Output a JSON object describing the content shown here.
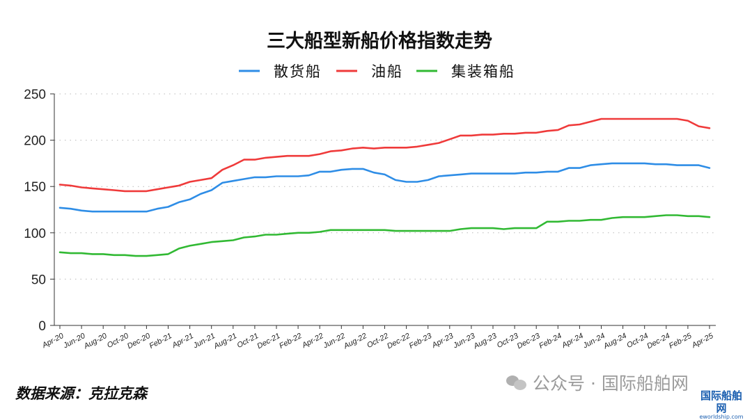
{
  "chart_data": {
    "type": "line",
    "title": "三大船型新船价格指数走势",
    "xlabel": "",
    "ylabel": "",
    "ylim": [
      0,
      250
    ],
    "yticks": [
      0,
      50,
      100,
      150,
      200,
      250
    ],
    "grid": "horizontal dotted",
    "legend_position": "top-center",
    "x": [
      "Apr-20",
      "May-20",
      "Jun-20",
      "Jul-20",
      "Aug-20",
      "Sep-20",
      "Oct-20",
      "Nov-20",
      "Dec-20",
      "Jan-21",
      "Feb-21",
      "Mar-21",
      "Apr-21",
      "May-21",
      "Jun-21",
      "Jul-21",
      "Aug-21",
      "Sep-21",
      "Oct-21",
      "Nov-21",
      "Dec-21",
      "Jan-22",
      "Feb-22",
      "Mar-22",
      "Apr-22",
      "May-22",
      "Jun-22",
      "Jul-22",
      "Aug-22",
      "Sep-22",
      "Oct-22",
      "Nov-22",
      "Dec-22",
      "Jan-23",
      "Feb-23",
      "Mar-23",
      "Apr-23",
      "May-23",
      "Jun-23",
      "Jul-23",
      "Aug-23",
      "Sep-23",
      "Oct-23",
      "Nov-23",
      "Dec-23",
      "Jan-24",
      "Feb-24",
      "Mar-24",
      "Apr-24",
      "May-24",
      "Jun-24",
      "Jul-24",
      "Aug-24",
      "Sep-24",
      "Oct-24",
      "Nov-24",
      "Dec-24",
      "Jan-25",
      "Feb-25",
      "Mar-25",
      "Apr-25"
    ],
    "x_tick_labels": [
      "Apr-20",
      "Jun-20",
      "Aug-20",
      "Oct-20",
      "Dec-20",
      "Feb-21",
      "Apr-21",
      "Jun-21",
      "Aug-21",
      "Oct-21",
      "Dec-21",
      "Feb-22",
      "Apr-22",
      "Jun-22",
      "Aug-22",
      "Oct-22",
      "Dec-22",
      "Feb-23",
      "Apr-23",
      "Jun-23",
      "Aug-23",
      "Oct-23",
      "Dec-23",
      "Feb-24",
      "Apr-24",
      "Jun-24",
      "Aug-24",
      "Oct-24",
      "Dec-24",
      "Feb-25",
      "Apr-25"
    ],
    "series": [
      {
        "name": "散货船",
        "color": "#2e8de6",
        "values": [
          127,
          126,
          124,
          123,
          123,
          123,
          123,
          123,
          123,
          126,
          128,
          133,
          136,
          142,
          146,
          154,
          156,
          158,
          160,
          160,
          161,
          161,
          161,
          162,
          166,
          166,
          168,
          169,
          169,
          165,
          163,
          157,
          155,
          155,
          157,
          161,
          162,
          163,
          164,
          164,
          164,
          164,
          164,
          165,
          165,
          166,
          166,
          170,
          170,
          173,
          174,
          175,
          175,
          175,
          175,
          174,
          174,
          173,
          173,
          173,
          170
        ]
      },
      {
        "name": "油船",
        "color": "#ef3a3a",
        "values": [
          152,
          151,
          149,
          148,
          147,
          146,
          145,
          145,
          145,
          147,
          149,
          151,
          155,
          157,
          159,
          168,
          173,
          179,
          179,
          181,
          182,
          183,
          183,
          183,
          185,
          188,
          189,
          191,
          192,
          191,
          192,
          192,
          192,
          193,
          195,
          197,
          201,
          205,
          205,
          206,
          206,
          207,
          207,
          208,
          208,
          210,
          211,
          216,
          217,
          220,
          223,
          223,
          223,
          223,
          223,
          223,
          223,
          223,
          221,
          215,
          213
        ]
      },
      {
        "name": "集装箱船",
        "color": "#31b933",
        "values": [
          79,
          78,
          78,
          77,
          77,
          76,
          76,
          75,
          75,
          76,
          77,
          83,
          86,
          88,
          90,
          91,
          92,
          95,
          96,
          98,
          98,
          99,
          100,
          100,
          101,
          103,
          103,
          103,
          103,
          103,
          103,
          102,
          102,
          102,
          102,
          102,
          102,
          104,
          105,
          105,
          105,
          104,
          105,
          105,
          105,
          112,
          112,
          113,
          113,
          114,
          114,
          116,
          117,
          117,
          117,
          118,
          119,
          119,
          118,
          118,
          117
        ]
      }
    ]
  },
  "footer": {
    "source_label": "数据来源：克拉克森",
    "watermark_text": "公众号 · 国际船舶网",
    "logo_text": "国际船舶网",
    "logo_sub": "eworldship.com"
  }
}
